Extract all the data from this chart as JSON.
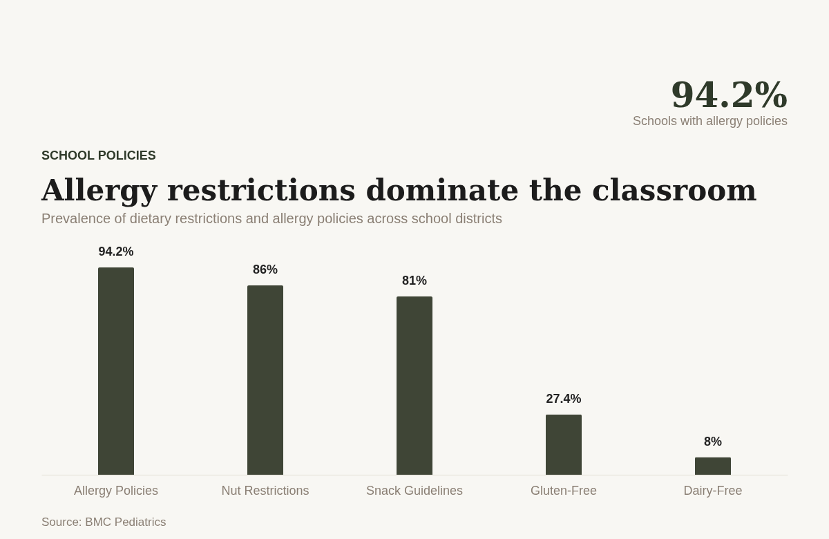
{
  "chart_data": {
    "type": "bar",
    "title": "Allergy restrictions dominate the classroom",
    "subtitle": "Prevalence of dietary restrictions and allergy policies across school districts",
    "categories": [
      "Allergy Policies",
      "Nut Restrictions",
      "Snack Guidelines",
      "Gluten-Free",
      "Dairy-Free"
    ],
    "values": [
      94.2,
      86,
      81,
      27.4,
      8
    ],
    "value_labels": [
      "94.2%",
      "86%",
      "81%",
      "27.4%",
      "8%"
    ],
    "color": "#3f4536",
    "annotations": [
      "SCHOOL POLICIES",
      "94.2%",
      "Schools with allergy policies",
      "Source: BMC Pediatrics"
    ]
  }
}
